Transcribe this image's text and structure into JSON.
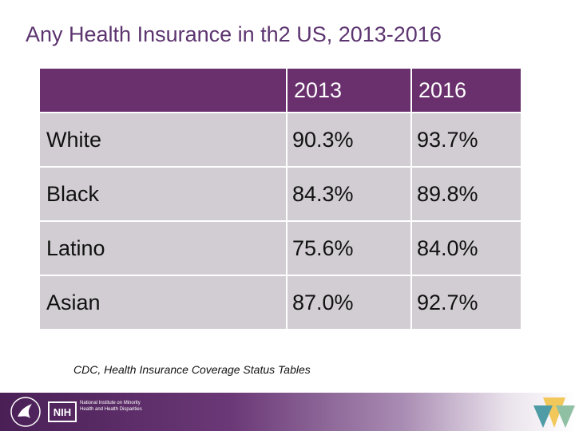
{
  "title": "Any Health Insurance in th2 US, 2013-2016",
  "table": {
    "headers": [
      "",
      "2013",
      "2016"
    ],
    "rows": [
      {
        "label": "White",
        "v2013": "90.3%",
        "v2016": "93.7%"
      },
      {
        "label": "Black",
        "v2013": "84.3%",
        "v2016": "89.8%"
      },
      {
        "label": "Latino",
        "v2013": "75.6%",
        "v2016": "84.0%"
      },
      {
        "label": "Asian",
        "v2013": "87.0%",
        "v2016": "92.7%"
      }
    ]
  },
  "source": "CDC, Health Insurance Coverage Status Tables",
  "footer": {
    "nih_badge": "NIH",
    "nih_text": "National Institute on Minority Health and Health Disparities"
  },
  "colors": {
    "title": "#5c3470",
    "header_bg": "#69306d",
    "cell_bg": "#d2cdd3"
  }
}
